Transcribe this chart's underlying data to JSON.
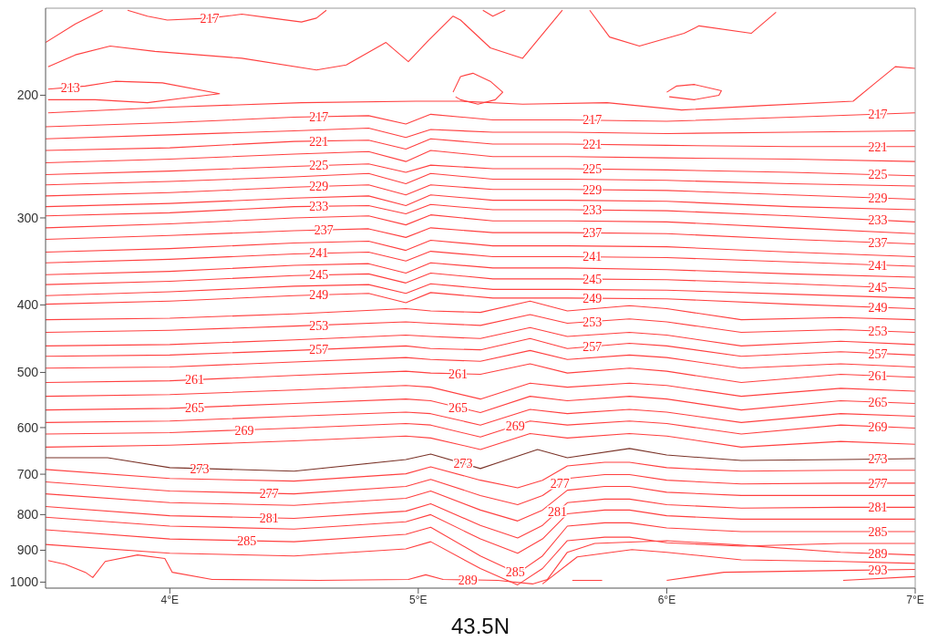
{
  "chart_data": {
    "type": "line",
    "xlabel": "43.5N",
    "xlim": [
      3.5,
      7
    ],
    "xticks": [
      {
        "value": 4,
        "label": "4°E"
      },
      {
        "value": 5,
        "label": "5°E"
      },
      {
        "value": 6,
        "label": "6°E"
      },
      {
        "value": 7,
        "label": "7°E"
      }
    ],
    "ylim": [
      1020,
      150
    ],
    "yticks": [
      200,
      300,
      400,
      500,
      600,
      700,
      800,
      900,
      1000
    ],
    "log": true,
    "grid": false,
    "marker": "none",
    "line_style": "solid",
    "series": [
      {
        "color": "#ff4040",
        "x": [
          3.5,
          3.62,
          3.73
        ],
        "values": [
          168,
          158,
          151
        ]
      },
      {
        "color": "#ff4040",
        "x": [
          3.83,
          3.91,
          3.99,
          4.16,
          4.29,
          4.41,
          4.53,
          4.59,
          4.63
        ],
        "values": [
          151,
          154,
          156,
          155,
          153,
          155,
          157,
          155,
          151
        ]
      },
      {
        "color": "#ff4040",
        "x": [
          3.51,
          3.62,
          3.76,
          3.94,
          4.29,
          4.59,
          4.71,
          4.87,
          4.96,
          5.04,
          5.14,
          5.17,
          5.29,
          5.42,
          5.58
        ],
        "values": [
          182,
          175,
          170,
          173,
          177,
          184,
          181,
          168,
          179,
          167,
          154,
          156,
          171,
          177,
          151
        ]
      },
      {
        "color": "#ff4040",
        "x": [
          5.69,
          5.77,
          5.89,
          6.07,
          6.13,
          6.34,
          6.44
        ],
        "values": [
          151,
          165,
          170,
          163,
          159,
          163,
          152
        ]
      },
      {
        "color": "#ff4040",
        "x": [
          5.26,
          5.3,
          5.35
        ],
        "values": [
          151,
          154,
          151
        ]
      },
      {
        "color": "#ff4040",
        "x": [
          5.14,
          5.17,
          5.22,
          5.29,
          5.34,
          5.31,
          5.24,
          5.17,
          5.15
        ],
        "values": [
          198,
          188,
          186,
          191,
          198,
          203,
          206,
          203,
          201
        ]
      },
      {
        "color": "#ff4040",
        "x": [
          6.0,
          6.04,
          6.11,
          6.22,
          6.21,
          6.11,
          6.01
        ],
        "values": [
          198,
          194,
          193,
          197,
          200,
          203,
          201
        ]
      },
      {
        "color": "#ff4040",
        "x": [
          3.51,
          3.66,
          3.78,
          3.97,
          4.2,
          4.05,
          3.91,
          3.7,
          3.51
        ],
        "values": [
          196,
          194,
          191,
          192,
          199,
          202,
          205,
          203,
          203
        ]
      },
      {
        "color": "#ff4040",
        "x": [
          3.51,
          4.0,
          4.53,
          4.99,
          5.17,
          5.42,
          5.76,
          6.06,
          6.38,
          6.75,
          6.84,
          6.92,
          7.0
        ],
        "values": [
          212,
          208,
          205,
          204,
          204,
          206,
          205,
          210,
          207,
          204,
          192,
          182,
          183
        ]
      },
      {
        "color": "#ff4040",
        "x": [
          3.5,
          4.0,
          4.5,
          4.8,
          4.95,
          5.05,
          5.3,
          5.6,
          6.0,
          6.5,
          7.0
        ],
        "values": [
          222,
          219,
          215,
          214,
          220,
          213,
          217,
          217,
          218,
          215,
          212
        ]
      },
      {
        "color": "#ff4040",
        "x": [
          3.5,
          4.0,
          4.5,
          4.8,
          4.95,
          5.05,
          5.3,
          5.6,
          6.0,
          6.5,
          7.0
        ],
        "values": [
          231,
          228,
          225,
          223,
          230,
          224,
          226,
          226,
          227,
          226,
          225
        ]
      },
      {
        "color": "#ff4040",
        "x": [
          3.5,
          4.0,
          4.5,
          4.8,
          4.95,
          5.05,
          5.3,
          5.6,
          6.0,
          6.5,
          7.0
        ],
        "values": [
          240,
          238,
          233,
          232,
          239,
          231,
          235,
          235,
          236,
          237,
          237
        ]
      },
      {
        "color": "#ff4040",
        "x": [
          3.5,
          4.0,
          4.5,
          4.8,
          4.95,
          5.05,
          5.3,
          5.6,
          6.0,
          6.5,
          7.0
        ],
        "values": [
          250,
          247,
          243,
          241,
          249,
          240,
          245,
          245,
          246,
          247,
          249
        ]
      },
      {
        "color": "#ff4040",
        "x": [
          3.5,
          4.0,
          4.5,
          4.8,
          4.95,
          5.05,
          5.3,
          5.6,
          6.0,
          6.5,
          7.0
        ],
        "values": [
          260,
          257,
          253,
          251,
          258,
          252,
          255,
          255,
          256,
          258,
          261
        ]
      },
      {
        "color": "#ff4040",
        "x": [
          3.5,
          4.0,
          4.5,
          4.8,
          4.95,
          5.05,
          5.3,
          5.6,
          6.0,
          6.5,
          7.0
        ],
        "values": [
          269,
          266,
          262,
          259,
          268,
          259,
          264,
          264,
          265,
          268,
          270
        ]
      },
      {
        "color": "#ff4040",
        "x": [
          3.5,
          4.0,
          4.5,
          4.8,
          4.95,
          5.05,
          5.3,
          5.6,
          6.0,
          6.5,
          7.0
        ],
        "values": [
          279,
          276,
          271,
          269,
          278,
          269,
          273,
          273,
          274,
          278,
          282
        ]
      },
      {
        "color": "#ff4040",
        "x": [
          3.5,
          4.0,
          4.5,
          4.8,
          4.95,
          5.05,
          5.3,
          5.6,
          6.0,
          6.5,
          7.0
        ],
        "values": [
          289,
          286,
          281,
          279,
          288,
          278,
          283,
          283,
          284,
          289,
          292
        ]
      },
      {
        "color": "#ff4040",
        "x": [
          3.5,
          4.0,
          4.5,
          4.8,
          4.95,
          5.05,
          5.3,
          5.6,
          6.0,
          6.5,
          7.0
        ],
        "values": [
          298,
          295,
          289,
          288,
          296,
          287,
          292,
          292,
          293,
          298,
          304
        ]
      },
      {
        "color": "#ff4040",
        "x": [
          3.5,
          4.0,
          4.5,
          4.8,
          4.95,
          5.05,
          5.3,
          5.6,
          6.0,
          6.5,
          7.0
        ],
        "values": [
          310,
          306,
          300,
          298,
          307,
          297,
          303,
          303,
          304,
          310,
          316
        ]
      },
      {
        "color": "#ff4040",
        "x": [
          3.5,
          4.0,
          4.5,
          4.8,
          4.95,
          5.05,
          5.3,
          5.6,
          6.0,
          6.5,
          7.0
        ],
        "values": [
          322,
          318,
          313,
          311,
          320,
          310,
          315,
          315,
          316,
          322,
          327
        ]
      },
      {
        "color": "#ff4040",
        "x": [
          3.5,
          4.0,
          4.5,
          4.8,
          4.95,
          5.05,
          5.3,
          5.6,
          6.0,
          6.5,
          7.0
        ],
        "values": [
          336,
          332,
          326,
          324,
          334,
          323,
          329,
          329,
          330,
          336,
          341
        ]
      },
      {
        "color": "#ff4040",
        "x": [
          3.5,
          4.0,
          4.5,
          4.8,
          4.95,
          5.05,
          5.3,
          5.6,
          6.0,
          6.5,
          7.0
        ],
        "values": [
          348,
          344,
          338,
          336,
          346,
          335,
          341,
          341,
          342,
          347,
          352
        ]
      },
      {
        "color": "#ff4040",
        "x": [
          3.5,
          4.0,
          4.5,
          4.8,
          4.95,
          5.05,
          5.3,
          5.6,
          6.0,
          6.5,
          7.0
        ],
        "values": [
          362,
          358,
          351,
          349,
          360,
          348,
          354,
          354,
          356,
          361,
          365
        ]
      },
      {
        "color": "#ff4040",
        "x": [
          3.5,
          4.0,
          4.5,
          4.8,
          4.95,
          5.05,
          5.3,
          5.6,
          6.0,
          6.5,
          7.0
        ],
        "values": [
          374,
          370,
          363,
          361,
          372,
          360,
          367,
          367,
          368,
          373,
          379
        ]
      },
      {
        "color": "#ff4040",
        "x": [
          3.5,
          4.0,
          4.5,
          4.8,
          4.95,
          5.05,
          5.3,
          5.6,
          6.0,
          6.5,
          7.0
        ],
        "values": [
          388,
          383,
          376,
          374,
          385,
          373,
          380,
          380,
          381,
          386,
          391
        ]
      },
      {
        "color": "#ff4040",
        "x": [
          3.5,
          4.0,
          4.5,
          4.8,
          4.95,
          5.05,
          5.3,
          5.6,
          6.0,
          6.5,
          7.0
        ],
        "values": [
          399,
          395,
          388,
          385,
          397,
          384,
          391,
          391,
          392,
          399,
          405
        ]
      },
      {
        "color": "#ff4040",
        "x": [
          3.5,
          4.0,
          4.5,
          4.95,
          5.05,
          5.25,
          5.45,
          5.6,
          5.85,
          6.0,
          6.3,
          6.7,
          7.0
        ],
        "values": [
          420,
          418,
          412,
          405,
          408,
          410,
          395,
          408,
          401,
          405,
          420,
          417,
          420
        ]
      },
      {
        "color": "#ff4040",
        "x": [
          3.5,
          4.0,
          4.5,
          4.95,
          5.05,
          5.25,
          5.45,
          5.6,
          5.85,
          6.0,
          6.3,
          6.7,
          7.0
        ],
        "values": [
          438,
          435,
          429,
          423,
          425,
          428,
          413,
          425,
          419,
          423,
          438,
          434,
          438
        ]
      },
      {
        "color": "#ff4040",
        "x": [
          3.5,
          4.0,
          4.5,
          4.95,
          5.05,
          5.25,
          5.45,
          5.6,
          5.85,
          6.0,
          6.3,
          6.7,
          7.0
        ],
        "values": [
          458,
          456,
          449,
          442,
          444,
          447,
          431,
          444,
          438,
          442,
          458,
          451,
          456
        ]
      },
      {
        "color": "#ff4040",
        "x": [
          3.5,
          4.0,
          4.5,
          4.95,
          5.05,
          5.25,
          5.45,
          5.6,
          5.85,
          6.0,
          6.3,
          6.7,
          7.0
        ],
        "values": [
          474,
          472,
          465,
          458,
          462,
          464,
          447,
          462,
          454,
          458,
          474,
          467,
          472
        ]
      },
      {
        "color": "#ff4040",
        "x": [
          3.5,
          4.0,
          4.5,
          4.95,
          5.05,
          5.25,
          5.45,
          5.6,
          5.85,
          6.0,
          6.3,
          6.7,
          7.0
        ],
        "values": [
          493,
          491,
          483,
          476,
          479,
          482,
          465,
          479,
          472,
          476,
          493,
          486,
          491
        ]
      },
      {
        "color": "#ff4040",
        "x": [
          3.5,
          4.0,
          4.5,
          4.95,
          5.05,
          5.25,
          5.45,
          5.6,
          5.85,
          6.0,
          6.3,
          6.7,
          7.0
        ],
        "values": [
          517,
          514,
          505,
          498,
          501,
          503,
          486,
          501,
          493,
          498,
          517,
          503,
          508
        ]
      },
      {
        "color": "#ff4040",
        "x": [
          3.5,
          4.0,
          4.5,
          4.95,
          5.05,
          5.25,
          5.45,
          5.6,
          5.85,
          6.0,
          6.3,
          6.7,
          7.0
        ],
        "values": [
          541,
          538,
          530,
          522,
          525,
          546,
          518,
          525,
          518,
          522,
          541,
          527,
          532
        ]
      },
      {
        "color": "#ff4040",
        "x": [
          3.5,
          4.0,
          4.5,
          4.95,
          5.05,
          5.25,
          5.45,
          5.6,
          5.85,
          6.0,
          6.3,
          6.7,
          7.0
        ],
        "values": [
          566,
          563,
          554,
          546,
          549,
          571,
          541,
          549,
          541,
          546,
          566,
          549,
          554
        ]
      },
      {
        "color": "#ff4040",
        "x": [
          3.5,
          4.0,
          4.5,
          4.95,
          5.05,
          5.25,
          5.45,
          5.6,
          5.85,
          6.0,
          6.3,
          6.7,
          7.0
        ],
        "values": [
          590,
          587,
          578,
          570,
          573,
          595,
          565,
          573,
          565,
          570,
          590,
          573,
          578
        ]
      },
      {
        "color": "#ff4040",
        "x": [
          3.5,
          4.0,
          4.5,
          4.95,
          5.05,
          5.25,
          5.45,
          5.6,
          5.85,
          6.0,
          6.3,
          6.7,
          7.0
        ],
        "values": [
          613,
          610,
          601,
          592,
          595,
          619,
          587,
          595,
          587,
          592,
          613,
          595,
          601
        ]
      },
      {
        "color": "#ff4040",
        "x": [
          3.5,
          4.0,
          4.5,
          4.95,
          5.05,
          5.25,
          5.45,
          5.6,
          5.85,
          6.0,
          6.3,
          6.7,
          7.0
        ],
        "values": [
          640,
          636,
          627,
          617,
          621,
          645,
          612,
          621,
          612,
          617,
          640,
          628,
          634
        ]
      },
      {
        "color": "#7a3328",
        "x": [
          3.5,
          3.75,
          4.0,
          4.5,
          4.95,
          5.05,
          5.25,
          5.48,
          5.6,
          5.85,
          6.0,
          6.3,
          6.7,
          7.0
        ],
        "values": [
          663,
          663,
          685,
          693,
          667,
          655,
          687,
          645,
          663,
          643,
          657,
          669,
          667,
          665
        ]
      },
      {
        "color": "#ff4040",
        "x": [
          3.5,
          4.0,
          4.5,
          4.95,
          5.05,
          5.25,
          5.4,
          5.5,
          5.6,
          5.75,
          5.85,
          6.0,
          6.3,
          6.7,
          7.0
        ],
        "values": [
          689,
          710,
          716,
          699,
          683,
          714,
          732,
          714,
          681,
          673,
          673,
          685,
          693,
          691,
          691
        ]
      },
      {
        "color": "#ff4040",
        "x": [
          3.5,
          4.0,
          4.5,
          4.95,
          5.05,
          5.25,
          5.4,
          5.5,
          5.6,
          5.75,
          5.85,
          6.0,
          6.3,
          6.7,
          7.0
        ],
        "values": [
          718,
          740,
          747,
          729,
          712,
          751,
          774,
          751,
          710,
          701,
          701,
          714,
          723,
          721,
          721
        ]
      },
      {
        "color": "#ff4040",
        "x": [
          3.5,
          4.0,
          4.5,
          4.95,
          5.05,
          5.25,
          5.4,
          5.5,
          5.6,
          5.75,
          5.85,
          6.0,
          6.3,
          6.7,
          7.0
        ],
        "values": [
          747,
          769,
          776,
          758,
          740,
          788,
          817,
          788,
          738,
          729,
          729,
          743,
          751,
          751,
          751
        ]
      },
      {
        "color": "#ff4040",
        "x": [
          3.5,
          4.0,
          4.5,
          4.95,
          5.05,
          5.25,
          5.4,
          5.5,
          5.6,
          5.75,
          5.85,
          6.0,
          6.3,
          6.7,
          7.0
        ],
        "values": [
          779,
          803,
          810,
          791,
          772,
          829,
          864,
          829,
          769,
          760,
          760,
          774,
          783,
          781,
          781
        ]
      },
      {
        "color": "#ff4040",
        "x": [
          3.5,
          4.0,
          4.5,
          4.95,
          5.05,
          5.25,
          5.4,
          5.5,
          5.6,
          5.75,
          5.85,
          6.0,
          6.3,
          6.7,
          7.0
        ],
        "values": [
          807,
          831,
          839,
          819,
          800,
          867,
          909,
          867,
          798,
          788,
          788,
          803,
          812,
          812,
          812
        ]
      },
      {
        "color": "#ff4040",
        "x": [
          3.5,
          4.0,
          4.5,
          4.95,
          5.05,
          5.25,
          5.4,
          5.5,
          5.6,
          5.75,
          5.85,
          6.0,
          6.3,
          6.7,
          7.0
        ],
        "values": [
          841,
          867,
          875,
          854,
          834,
          917,
          971,
          917,
          831,
          822,
          822,
          836,
          846,
          846,
          846
        ]
      },
      {
        "color": "#ff4040",
        "x": [
          3.5,
          4.0,
          4.5,
          4.95,
          5.05,
          5.25,
          5.4,
          5.5,
          5.6,
          5.75,
          5.85,
          6.0,
          6.3,
          6.7,
          7.0
        ],
        "values": [
          883,
          909,
          917,
          896,
          875,
          956,
          1009,
          956,
          872,
          862,
          862,
          878,
          888,
          880,
          880
        ]
      },
      {
        "color": "#ff4040",
        "x": [
          3.51,
          3.58,
          3.66,
          3.69,
          3.74,
          3.87,
          3.98,
          4.01,
          4.17,
          4.6,
          4.96,
          5.03,
          5.1,
          5.32,
          5.46,
          5.52,
          5.6,
          5.71,
          6.0,
          6.3,
          6.7,
          7.0
        ],
        "values": [
          931,
          943,
          968,
          985,
          934,
          914,
          925,
          968,
          991,
          994,
          991,
          976,
          991,
          994,
          1006,
          991,
          906,
          880,
          872,
          885,
          906,
          914
        ]
      },
      {
        "color": "#ff4040",
        "x": [
          5.5,
          5.64,
          5.86,
          6.0,
          6.3,
          6.7,
          7.0
        ],
        "values": [
          1006,
          920,
          898,
          906,
          929,
          934,
          940
        ]
      },
      {
        "color": "#ff4040",
        "x": [
          5.62,
          5.74
        ],
        "values": [
          994,
          994
        ]
      },
      {
        "color": "#ff4040",
        "x": [
          6.0,
          6.23,
          6.7,
          7.0
        ],
        "values": [
          994,
          968,
          962,
          959
        ]
      },
      {
        "color": "#ff4040",
        "x": [
          6.71,
          7.0
        ],
        "values": [
          994,
          982
        ]
      }
    ],
    "annotations": [
      {
        "text": "217",
        "x": 4.16,
        "y": 155
      },
      {
        "text": "217",
        "x": 4.6,
        "y": 215
      },
      {
        "text": "217",
        "x": 5.7,
        "y": 217
      },
      {
        "text": "221",
        "x": 4.6,
        "y": 233
      },
      {
        "text": "221",
        "x": 5.7,
        "y": 235
      },
      {
        "text": "225",
        "x": 4.6,
        "y": 252
      },
      {
        "text": "225",
        "x": 5.7,
        "y": 255
      },
      {
        "text": "229",
        "x": 4.6,
        "y": 270
      },
      {
        "text": "229",
        "x": 5.7,
        "y": 273
      },
      {
        "text": "233",
        "x": 4.6,
        "y": 289
      },
      {
        "text": "233",
        "x": 5.7,
        "y": 292
      },
      {
        "text": "237",
        "x": 4.62,
        "y": 312
      },
      {
        "text": "237",
        "x": 5.7,
        "y": 315
      },
      {
        "text": "241",
        "x": 4.6,
        "y": 337
      },
      {
        "text": "241",
        "x": 5.7,
        "y": 341
      },
      {
        "text": "245",
        "x": 4.6,
        "y": 362
      },
      {
        "text": "245",
        "x": 5.7,
        "y": 367
      },
      {
        "text": "249",
        "x": 4.6,
        "y": 387
      },
      {
        "text": "249",
        "x": 5.7,
        "y": 391
      },
      {
        "text": "253",
        "x": 4.6,
        "y": 428
      },
      {
        "text": "253",
        "x": 5.7,
        "y": 423
      },
      {
        "text": "257",
        "x": 4.6,
        "y": 463
      },
      {
        "text": "257",
        "x": 5.7,
        "y": 459
      },
      {
        "text": "261",
        "x": 4.1,
        "y": 512
      },
      {
        "text": "261",
        "x": 5.16,
        "y": 502
      },
      {
        "text": "265",
        "x": 4.1,
        "y": 561
      },
      {
        "text": "265",
        "x": 5.16,
        "y": 561
      },
      {
        "text": "269",
        "x": 4.3,
        "y": 605
      },
      {
        "text": "269",
        "x": 5.39,
        "y": 597
      },
      {
        "text": "273",
        "x": 4.12,
        "y": 687
      },
      {
        "text": "273",
        "x": 5.18,
        "y": 676
      },
      {
        "text": "277",
        "x": 4.4,
        "y": 746
      },
      {
        "text": "277",
        "x": 5.57,
        "y": 722
      },
      {
        "text": "281",
        "x": 4.4,
        "y": 809
      },
      {
        "text": "281",
        "x": 5.56,
        "y": 793
      },
      {
        "text": "285",
        "x": 4.31,
        "y": 872
      },
      {
        "text": "285",
        "x": 5.39,
        "y": 967
      },
      {
        "text": "289",
        "x": 5.2,
        "y": 992
      },
      {
        "text": "213",
        "x": 3.6,
        "y": 195
      },
      {
        "text": "217",
        "x": 6.85,
        "y": 213
      },
      {
        "text": "221",
        "x": 6.85,
        "y": 237
      },
      {
        "text": "225",
        "x": 6.85,
        "y": 260
      },
      {
        "text": "229",
        "x": 6.85,
        "y": 281
      },
      {
        "text": "233",
        "x": 6.85,
        "y": 302
      },
      {
        "text": "237",
        "x": 6.85,
        "y": 326
      },
      {
        "text": "241",
        "x": 6.85,
        "y": 351
      },
      {
        "text": "245",
        "x": 6.85,
        "y": 377
      },
      {
        "text": "249",
        "x": 6.85,
        "y": 403
      },
      {
        "text": "253",
        "x": 6.85,
        "y": 436
      },
      {
        "text": "257",
        "x": 6.85,
        "y": 470
      },
      {
        "text": "261",
        "x": 6.85,
        "y": 506
      },
      {
        "text": "265",
        "x": 6.85,
        "y": 552
      },
      {
        "text": "269",
        "x": 6.85,
        "y": 598
      },
      {
        "text": "273",
        "x": 6.85,
        "y": 666
      },
      {
        "text": "277",
        "x": 6.85,
        "y": 721
      },
      {
        "text": "281",
        "x": 6.85,
        "y": 781
      },
      {
        "text": "285",
        "x": 6.85,
        "y": 846
      },
      {
        "text": "289",
        "x": 6.85,
        "y": 910
      },
      {
        "text": "293",
        "x": 6.85,
        "y": 960
      }
    ]
  }
}
